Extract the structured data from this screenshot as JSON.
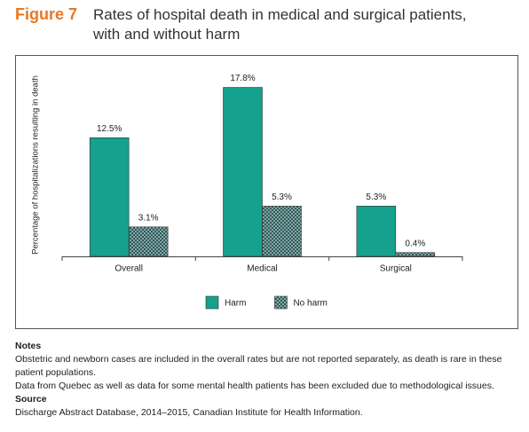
{
  "figure_label": "Figure 7",
  "chart_data": {
    "type": "bar",
    "title": "Rates of hospital death in medical and surgical patients, with and without harm",
    "y_label": "Percentage of hospitalizations resulting in death",
    "categories": [
      "Overall",
      "Medical",
      "Surgical"
    ],
    "series": [
      {
        "name": "Harm",
        "color": "#16a08e",
        "pattern": false,
        "values": [
          12.5,
          17.8,
          5.3
        ],
        "value_labels": [
          "12.5%",
          "17.8%",
          "5.3%"
        ]
      },
      {
        "name": "No harm",
        "color": "#2b5b5b",
        "pattern": true,
        "values": [
          3.1,
          5.3,
          0.4
        ],
        "value_labels": [
          "3.1%",
          "5.3%",
          "0.4%"
        ]
      }
    ],
    "ylim": [
      0,
      20
    ],
    "legend": "bottom"
  },
  "notes": {
    "heading": "Notes",
    "items": [
      "Obstetric and newborn cases are included in the overall rates but are not reported separately, as death is rare in these patient populations.",
      "Data from Quebec as well as data for some mental health patients has been excluded due to methodological issues."
    ]
  },
  "source": {
    "heading": "Source",
    "text": "Discharge Abstract Database, 2014–2015, Canadian Institute for Health Information."
  }
}
